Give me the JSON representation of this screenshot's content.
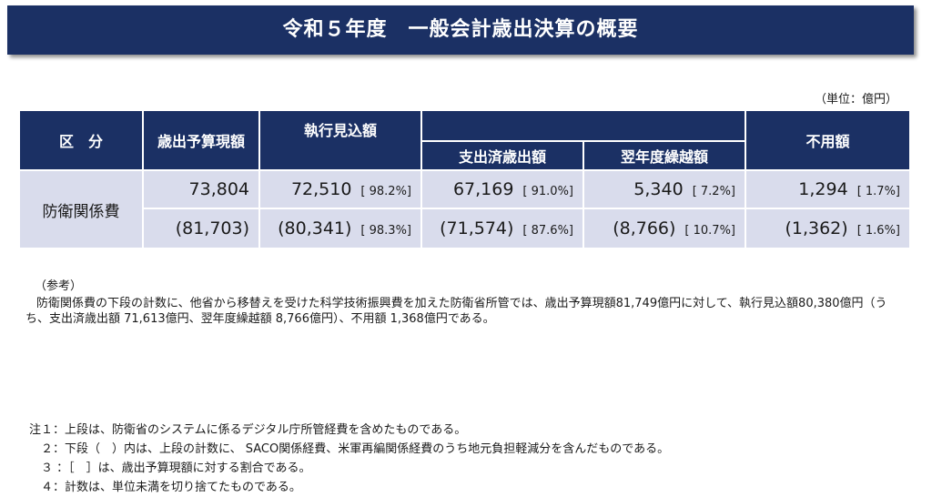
{
  "header": {
    "title": "令和５年度　一般会計歳出決算の概要"
  },
  "unit_label": "（単位：億円）",
  "table": {
    "headers": {
      "category": "区　分",
      "budget": "歳出予算現額",
      "execution": "執行見込額",
      "paid": "支出済歳出額",
      "carryover": "翌年度繰越額",
      "unused": "不用額"
    },
    "row_label": "防衛関係費",
    "upper": {
      "budget": "73,804",
      "execution": "72,510",
      "execution_pct": "[ 98.2%]",
      "paid": "67,169",
      "paid_pct": "[ 91.0%]",
      "carryover": "5,340",
      "carryover_pct": "[ 7.2%]",
      "unused": "1,294",
      "unused_pct": "[ 1.7%]"
    },
    "lower": {
      "budget": "(81,703)",
      "execution": "(80,341)",
      "execution_pct": "[ 98.3%]",
      "paid": "(71,574)",
      "paid_pct": "[ 87.6%]",
      "carryover": "(8,766)",
      "carryover_pct": "[ 10.7%]",
      "unused": "(1,362)",
      "unused_pct": "[ 1.6%]"
    }
  },
  "reference": {
    "heading": "（参考）",
    "text": "防衛関係費の下段の計数に、他省から移替えを受けた科学技術振興費を加えた防衛省所管では、歳出予算現額81,749億円に対して、執行見込額80,380億円（うち、支出済歳出額 71,613億円、翌年度繰越額 8,766億円）、不用額 1,368億円である。"
  },
  "notes": [
    "注１：上段は、防衛省のシステムに係るデジタル庁所管経費を含めたものである。",
    "　２：下段（　）内は、上段の計数に、 SACO関係経費、米軍再編関係経費のうち地元負担軽減分を含んだものである。",
    "　３ ：［　］は、歳出予算現額に対する割合である。",
    "　４：計数は、単位未満を切り捨てたものである。"
  ]
}
